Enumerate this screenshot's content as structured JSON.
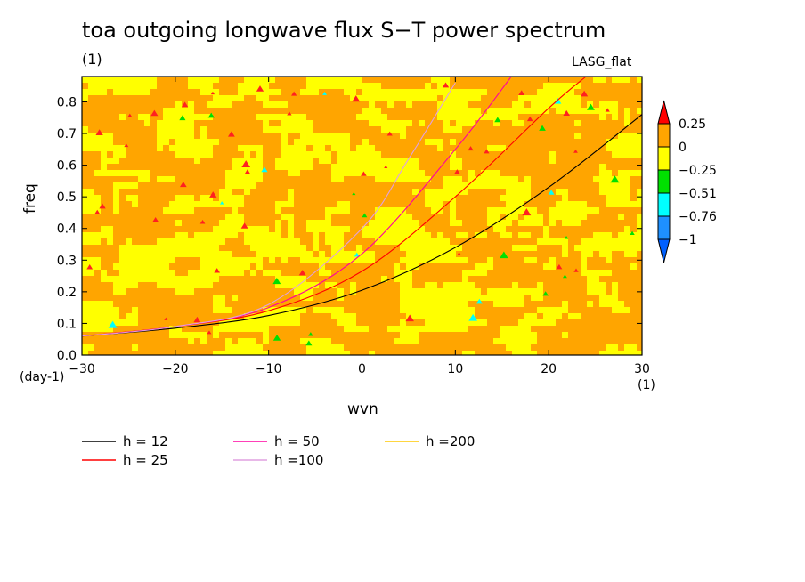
{
  "chart_data": {
    "type": "heatmap",
    "title": "toa outgoing longwave flux S−T power spectrum",
    "units_label": "(1)",
    "model_label": "LASG_flat",
    "xlabel": "wvn",
    "ylabel": "freq",
    "x_unit_label": "(1)",
    "y_unit_label": "(day-1)",
    "xlim": [
      -30,
      30
    ],
    "ylim": [
      0,
      0.88
    ],
    "x_ticks": [
      -30,
      -20,
      -10,
      0,
      10,
      20,
      30
    ],
    "x_tick_labels": [
      "−30",
      "−20",
      "−10",
      "0",
      "10",
      "20",
      "30"
    ],
    "y_ticks": [
      0,
      0.1,
      0.2,
      0.3,
      0.4,
      0.5,
      0.6,
      0.7,
      0.8
    ],
    "y_tick_labels": [
      "0.0",
      "0.1",
      "0.2",
      "0.3",
      "0.4",
      "0.5",
      "0.6",
      "0.7",
      "0.8"
    ],
    "colorbar": {
      "levels": [
        0.25,
        0,
        -0.25,
        -0.51,
        -0.76,
        -1
      ],
      "level_labels": [
        "0.25",
        "0",
        "−0.25",
        "−0.51",
        "−0.76",
        "−1"
      ],
      "colors": [
        "#ff0000",
        "#ffa500",
        "#ffff00",
        "#00e000",
        "#00ffff",
        "#1e90ff",
        "#0060ff"
      ]
    },
    "field_note_colors": {
      "dominant": "#ffa500",
      "secondary": "#ffff00",
      "rare": [
        "#ff2020",
        "#00e000",
        "#00ffff"
      ]
    },
    "series": [
      {
        "name": "h = 12",
        "color": "#000000",
        "x": [
          -30,
          -20,
          -10,
          0,
          10,
          20,
          30
        ],
        "y": [
          0.06,
          0.085,
          0.125,
          0.205,
          0.34,
          0.53,
          0.76
        ]
      },
      {
        "name": "h = 25",
        "color": "#ff0000",
        "x": [
          -30,
          -20,
          -10,
          0,
          10,
          20,
          24
        ],
        "y": [
          0.06,
          0.09,
          0.14,
          0.265,
          0.5,
          0.78,
          0.88
        ]
      },
      {
        "name": "h = 50",
        "color": "#ff00a0",
        "x": [
          -30,
          -20,
          -10,
          0,
          10,
          16
        ],
        "y": [
          0.06,
          0.09,
          0.15,
          0.32,
          0.65,
          0.88
        ]
      },
      {
        "name": "h =100",
        "color": "#e0a0e0",
        "x": [
          -30,
          -20,
          -10,
          0,
          5,
          10
        ],
        "y": [
          0.06,
          0.09,
          0.16,
          0.4,
          0.62,
          0.86
        ]
      },
      {
        "name": "h =200",
        "color": "#ffc800",
        "x": [],
        "y": []
      }
    ],
    "legend": [
      {
        "label": "h = 12",
        "color": "#000000"
      },
      {
        "label": "h = 25",
        "color": "#ff0000"
      },
      {
        "label": "h = 50",
        "color": "#ff00a0"
      },
      {
        "label": "h =100",
        "color": "#e0a0e0"
      },
      {
        "label": "h =200",
        "color": "#ffc800"
      }
    ]
  }
}
